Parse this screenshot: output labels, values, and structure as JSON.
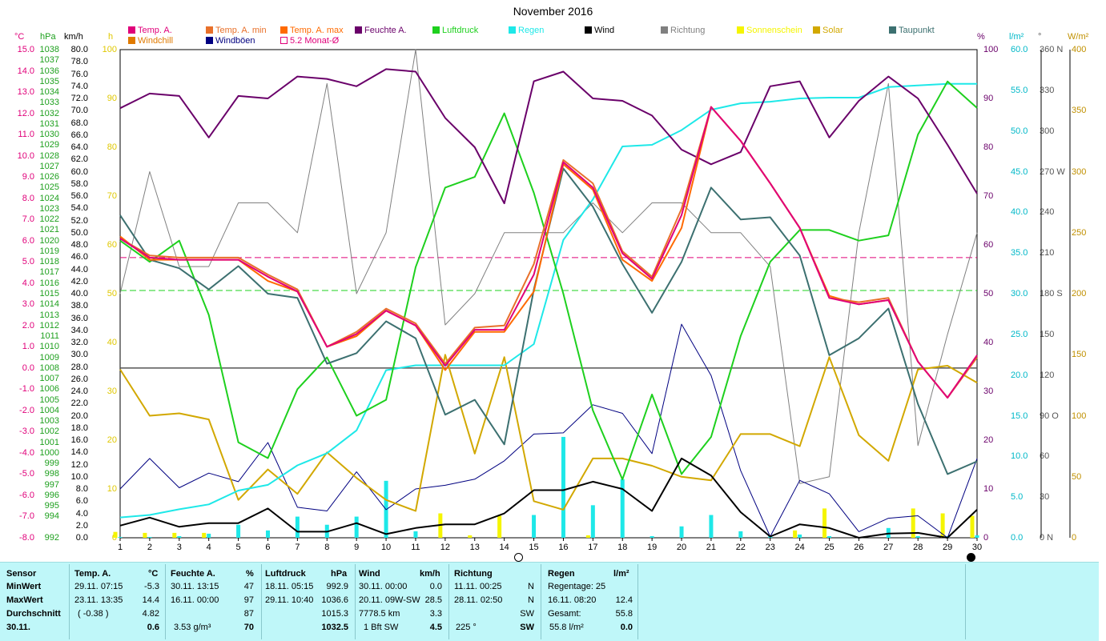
{
  "title": "November 2016",
  "legend": [
    {
      "label": "Temp. A.",
      "color": "#e0007a"
    },
    {
      "label": "Windchill",
      "color": "#e07a00"
    },
    {
      "label": "Temp. A. min",
      "color": "#e8702a"
    },
    {
      "label": "Windböen",
      "color": "#000080"
    },
    {
      "label": "Temp. A. max",
      "color": "#ff6a00"
    },
    {
      "label": "5.2 Monat-Ø",
      "color": "#e0007a"
    },
    {
      "label": "Feuchte A.",
      "color": "#6a006a"
    },
    {
      "label": "Luftdruck",
      "color": "#1ed01e"
    },
    {
      "label": "Regen",
      "color": "#1ee8e8"
    },
    {
      "label": "Wind",
      "color": "#000000"
    },
    {
      "label": "Richtung",
      "color": "#808080"
    },
    {
      "label": "Sonnenschein",
      "color": "#f5f500"
    },
    {
      "label": "Solar",
      "color": "#d2a800"
    },
    {
      "label": "Taupunkt",
      "color": "#3c7070"
    }
  ],
  "axis_units": {
    "temp": "°C",
    "pressure": "hPa",
    "wind": "km/h",
    "sun": "h",
    "humidity": "%",
    "rain": "l/m²",
    "direction": "°",
    "solar": "W/m²"
  },
  "chart_data": {
    "type": "line",
    "title": "November 2016",
    "x": [
      1,
      2,
      3,
      4,
      5,
      6,
      7,
      8,
      9,
      10,
      11,
      12,
      13,
      14,
      15,
      16,
      17,
      18,
      19,
      20,
      21,
      22,
      23,
      24,
      25,
      26,
      27,
      28,
      29,
      30
    ],
    "axes": {
      "temp": {
        "unit": "°C",
        "range": [
          -8.0,
          15.0
        ],
        "ticks": [
          "15.0",
          "14.0",
          "13.0",
          "12.0",
          "11.0",
          "10.0",
          "9.0",
          "8.0",
          "7.0",
          "6.0",
          "5.0",
          "4.0",
          "3.0",
          "2.0",
          "1.0",
          "0.0",
          "-1.0",
          "-2.0",
          "-3.0",
          "-4.0",
          "-5.0",
          "-6.0",
          "-7.0",
          "-8.0"
        ]
      },
      "pressure": {
        "unit": "hPa",
        "range": [
          992,
          1038
        ],
        "ticks": [
          "1038",
          "1037",
          "1036",
          "1035",
          "1034",
          "1033",
          "1032",
          "1031",
          "1030",
          "1029",
          "1028",
          "1027",
          "1026",
          "1025",
          "1024",
          "1023",
          "1022",
          "1021",
          "1020",
          "1019",
          "1018",
          "1017",
          "1016",
          "1015",
          "1014",
          "1013",
          "1012",
          "1011",
          "1010",
          "1009",
          "1008",
          "1007",
          "1006",
          "1005",
          "1004",
          "1003",
          "1002",
          "1001",
          "1000",
          "999",
          "998",
          "997",
          "996",
          "995",
          "994",
          "992"
        ]
      },
      "wind": {
        "unit": "km/h",
        "range": [
          0,
          80
        ],
        "ticks": [
          "80.0",
          "78.0",
          "76.0",
          "74.0",
          "72.0",
          "70.0",
          "68.0",
          "66.0",
          "64.0",
          "62.0",
          "60.0",
          "58.0",
          "56.0",
          "54.0",
          "52.0",
          "50.0",
          "48.0",
          "46.0",
          "44.0",
          "42.0",
          "40.0",
          "38.0",
          "36.0",
          "34.0",
          "32.0",
          "30.0",
          "28.0",
          "26.0",
          "24.0",
          "22.0",
          "20.0",
          "18.0",
          "16.0",
          "14.0",
          "12.0",
          "10.0",
          "8.0",
          "6.0",
          "4.0",
          "2.0",
          "0.0"
        ]
      },
      "sun": {
        "unit": "h",
        "range": [
          0,
          100
        ],
        "ticks": [
          "100",
          "90",
          "80",
          "70",
          "60",
          "50",
          "40",
          "30",
          "20",
          "10",
          "0"
        ]
      },
      "humidity": {
        "unit": "%",
        "range": [
          0,
          100
        ],
        "ticks": [
          "100",
          "90",
          "80",
          "70",
          "60",
          "50",
          "40",
          "30",
          "20",
          "10",
          "0"
        ]
      },
      "rain": {
        "unit": "l/m²",
        "range": [
          0,
          60
        ],
        "ticks": [
          "60.0",
          "55.0",
          "50.0",
          "45.0",
          "40.0",
          "35.0",
          "30.0",
          "25.0",
          "20.0",
          "15.0",
          "10.0",
          "5.0",
          "0.0"
        ]
      },
      "direction": {
        "unit": "°",
        "range": [
          0,
          360
        ],
        "ticks": [
          "360 N",
          "330",
          "300",
          "270 W",
          "240",
          "210",
          "180 S",
          "150",
          "120",
          "90 O",
          "60",
          "30",
          "0 N"
        ]
      },
      "solar": {
        "unit": "W/m²",
        "range": [
          0,
          400
        ],
        "ticks": [
          "400",
          "350",
          "300",
          "250",
          "200",
          "150",
          "100",
          "50",
          "0"
        ]
      }
    },
    "series": [
      {
        "name": "Temp. A. max",
        "axis": "temp",
        "color": "#e8702a",
        "values": [
          6.1,
          5.3,
          5.2,
          5.2,
          5.2,
          4.4,
          3.7,
          1.0,
          1.7,
          2.8,
          2.1,
          0.2,
          1.9,
          2.0,
          4.9,
          9.8,
          8.7,
          5.5,
          4.3,
          7.5,
          12.3,
          10.7,
          8.7,
          6.6,
          3.3,
          3.1,
          3.3,
          0.3,
          -1.4,
          0.5
        ]
      },
      {
        "name": "Temp. A. min",
        "axis": "temp",
        "color": "#ff6a00",
        "values": [
          6.2,
          5.1,
          5.1,
          5.1,
          5.1,
          4.1,
          3.6,
          1.0,
          1.5,
          2.7,
          2.0,
          -0.1,
          1.7,
          1.7,
          3.6,
          9.6,
          8.4,
          5.1,
          4.1,
          6.6,
          12.3,
          10.7,
          8.7,
          6.6,
          3.4,
          3.0,
          3.2,
          0.3,
          -1.4,
          0.6
        ]
      },
      {
        "name": "Temp. A.",
        "axis": "temp",
        "color": "#e0007a",
        "values": [
          6.1,
          5.2,
          5.1,
          5.1,
          5.1,
          4.3,
          3.6,
          1.0,
          1.6,
          2.7,
          2.0,
          0.1,
          1.8,
          1.8,
          4.4,
          9.7,
          8.5,
          5.4,
          4.2,
          7.2,
          12.3,
          10.7,
          8.7,
          6.6,
          3.3,
          3.0,
          3.2,
          0.3,
          -1.4,
          0.6
        ]
      },
      {
        "name": "Taupunkt",
        "axis": "temp",
        "color": "#3c7070",
        "values": [
          7.2,
          5.1,
          4.7,
          3.7,
          4.8,
          3.5,
          3.3,
          0.2,
          0.7,
          2.2,
          1.4,
          -2.2,
          -1.5,
          -3.6,
          3.7,
          9.4,
          7.6,
          4.9,
          2.6,
          5.0,
          8.5,
          7.0,
          7.1,
          5.3,
          0.6,
          1.4,
          2.8,
          -1.7,
          -5.0,
          -4.4
        ]
      },
      {
        "name": "Feuchte A.",
        "axis": "humidity",
        "color": "#6a006a",
        "values": [
          88,
          91,
          90.5,
          82,
          90.5,
          90,
          94.5,
          94,
          92.5,
          96,
          95.5,
          86,
          80,
          68.5,
          93.5,
          95.5,
          90,
          89.5,
          86.5,
          79.5,
          76.5,
          79,
          92.5,
          93.5,
          82,
          89.5,
          94.5,
          90,
          80.5,
          70.5
        ]
      },
      {
        "name": "Luftdruck",
        "axis": "pressure",
        "color": "#1ed01e",
        "values": [
          1020,
          1018,
          1020,
          1013,
          1001,
          999.5,
          1006,
          1009,
          1003.5,
          1005,
          1017.5,
          1025,
          1026,
          1032,
          1024.5,
          1015,
          1004,
          997.5,
          1005.5,
          998,
          1001.5,
          1011,
          1018,
          1021,
          1021,
          1020,
          1020.5,
          1030,
          1035,
          1032.5
        ]
      },
      {
        "name": "Regen",
        "axis": "rain",
        "color": "#1ee8e8",
        "values": [
          2.5,
          2.8,
          3.5,
          4.1,
          5.8,
          6.5,
          8.9,
          10.4,
          13.2,
          20.6,
          21.2,
          21.2,
          21.2,
          21.2,
          23.8,
          36.6,
          41.6,
          48.1,
          48.3,
          50.1,
          52.6,
          53.4,
          53.6,
          54.0,
          54.1,
          54.1,
          55.4,
          55.6,
          55.8,
          55.8
        ]
      },
      {
        "name": "Wind",
        "axis": "wind",
        "color": "#000000",
        "values": [
          2.0,
          3.3,
          1.8,
          2.4,
          2.4,
          4.8,
          1.0,
          1.0,
          2.4,
          0.6,
          1.6,
          2.2,
          2.2,
          4.0,
          7.8,
          7.8,
          9.2,
          8.0,
          4.4,
          13.0,
          10.2,
          4.2,
          0.2,
          2.2,
          1.6,
          0.0,
          0.7,
          0.8,
          0.0,
          4.6
        ]
      },
      {
        "name": "Windböen",
        "axis": "wind",
        "color": "#000080",
        "values": [
          8.0,
          13.0,
          8.2,
          10.6,
          9.2,
          15.6,
          5.0,
          4.4,
          10.8,
          4.6,
          8.0,
          8.6,
          9.6,
          12.6,
          17.0,
          17.2,
          21.8,
          20.4,
          13.8,
          35.0,
          26.6,
          11.0,
          0.2,
          9.4,
          7.2,
          1.0,
          3.2,
          3.6,
          0.0,
          13.0
        ]
      },
      {
        "name": "Richtung",
        "axis": "direction",
        "color": "#808080",
        "values": [
          180,
          270,
          200,
          200,
          247,
          247,
          225,
          335,
          180,
          225,
          360,
          157,
          180,
          225,
          225,
          225,
          247,
          225,
          247,
          247,
          225,
          225,
          200,
          40,
          45,
          225,
          335,
          68,
          150,
          225
        ]
      },
      {
        "name": "Solar",
        "axis": "solar",
        "color": "#d2a800",
        "values": [
          138,
          100,
          102,
          97,
          31,
          56,
          36,
          70,
          49,
          31,
          22,
          150,
          69,
          148,
          30,
          23,
          65,
          65,
          59,
          50,
          47,
          85,
          85,
          75,
          148,
          84,
          63,
          138,
          141,
          127
        ]
      },
      {
        "name": "Sonnenschein",
        "axis": "sun",
        "color": "#f5f500",
        "type": "bar",
        "values": [
          1.2,
          1.0,
          1.0,
          1.0,
          0,
          0,
          0,
          0,
          0,
          0,
          0,
          5.0,
          0.5,
          4.5,
          0,
          0,
          0.5,
          0,
          0,
          0,
          0,
          0,
          0,
          1.5,
          6.0,
          0,
          0,
          6.0,
          5.0,
          4.5
        ]
      },
      {
        "name": "Regen (täglich)",
        "axis": "rain",
        "color": "#1ee8e8",
        "type": "bar",
        "values": [
          0.1,
          0.1,
          0.2,
          0.5,
          1.6,
          0.9,
          2.6,
          1.6,
          2.6,
          7.0,
          0.8,
          0,
          0,
          0,
          2.8,
          12.4,
          4.0,
          7.2,
          0.2,
          1.4,
          2.8,
          0.8,
          0.2,
          0.4,
          0.2,
          0,
          1.2,
          0.2,
          0.2,
          0.3
        ]
      }
    ],
    "reference_lines": [
      {
        "label": "5.2 Monat-Ø",
        "axis": "temp",
        "value": 5.2,
        "color": "#e0007a",
        "style": "dashed"
      },
      {
        "axis": "pressure",
        "value": 1015.3,
        "color": "#1ed01e",
        "style": "dashed"
      },
      {
        "axis": "temp",
        "value": 0.0,
        "color": "#555555",
        "style": "solid"
      }
    ],
    "moon_phases": [
      {
        "day": 14.5,
        "phase": "full"
      },
      {
        "day": 29.8,
        "phase": "new"
      }
    ]
  },
  "panel": {
    "sensor": {
      "header": "Sensor",
      "rows": [
        "MinWert",
        "MaxWert",
        "Durchschnitt",
        "30.11."
      ]
    },
    "temp": {
      "header": "Temp. A.",
      "unit": "°C",
      "min_time": "29.11.  07:15",
      "min_val": "-5.3",
      "max_time": "23.11.  13:35",
      "max_val": "14.4",
      "avg_note": "( -0.38 )",
      "avg_val": "4.82",
      "today_val": "0.6"
    },
    "humidity": {
      "header": "Feuchte A.",
      "unit": "%",
      "min_time": "30.11.  13:15",
      "min_val": "47",
      "max_time": "16.11.  00:00",
      "max_val": "97",
      "avg_val": "87",
      "today_note": "3.53 g/m³",
      "today_val": "70"
    },
    "pressure": {
      "header": "Luftdruck",
      "unit": "hPa",
      "min_time": "18.11.  05:15",
      "min_val": "992.9",
      "max_time": "29.11.  10:40",
      "max_val": "1036.6",
      "avg_val": "1015.3",
      "today_val": "1032.5"
    },
    "wind": {
      "header": "Wind",
      "unit": "km/h",
      "min_time": "30.11.  00:00",
      "min_val": "0.0",
      "max_time": "20.11.  09W-SW",
      "max_val": "28.5",
      "avg_note": "7778.5 km",
      "avg_val": "3.3",
      "today_note": "1 Bft SW",
      "today_val": "4.5"
    },
    "direction": {
      "header": "Richtung",
      "min_time": "11.11.  00:25",
      "min_val": "N",
      "max_time": "28.11.  02:50",
      "max_val": "N",
      "avg_val": "SW",
      "today_note": "225 °",
      "today_val": "SW"
    },
    "rain": {
      "header": "Regen",
      "unit": "l/m²",
      "row1": "Regentage: 25",
      "row2_time": "16.11.  08:20",
      "row2_val": "12.4",
      "row3_label": "Gesamt:",
      "row3_val": "55.8",
      "today_note": "55.8 l/m²",
      "today_val": "0.0"
    }
  }
}
